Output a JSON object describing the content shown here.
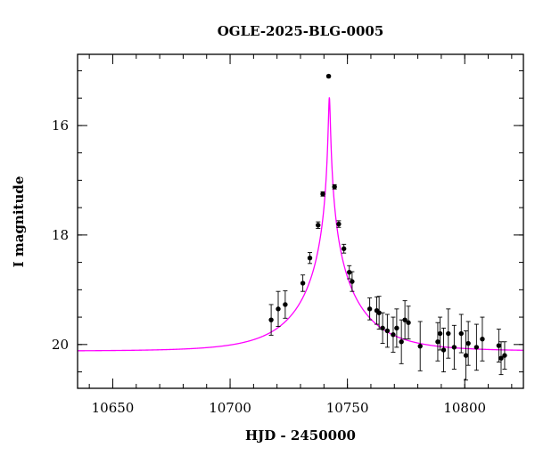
{
  "chart_data": {
    "type": "scatter",
    "title": "OGLE-2025-BLG-0005",
    "xlabel": "HJD - 2450000",
    "ylabel": "I magnitude",
    "xlim": [
      10635,
      10825
    ],
    "ylim": [
      20.8,
      14.7
    ],
    "y_inverted": true,
    "x_major_ticks": [
      10650,
      10700,
      10750,
      10800
    ],
    "x_minor_step": 10,
    "y_major_ticks": [
      16,
      18,
      20
    ],
    "y_minor_step": 0.5,
    "grid": false,
    "legend": "none",
    "colors": {
      "model": "#ff00ff",
      "points": "#000000",
      "axes": "#000000"
    },
    "model": {
      "type": "single-lens point-source",
      "t0": 10742.3,
      "u0": 0.014,
      "tE": 26,
      "baseline_mag": 20.12,
      "line_color": "#ff00ff"
    },
    "points": [
      {
        "x": 10717.5,
        "y": 19.55,
        "err": 0.28
      },
      {
        "x": 10720.5,
        "y": 19.35,
        "err": 0.32
      },
      {
        "x": 10723.5,
        "y": 19.27,
        "err": 0.25
      },
      {
        "x": 10731.0,
        "y": 18.88,
        "err": 0.15
      },
      {
        "x": 10734.0,
        "y": 18.42,
        "err": 0.1
      },
      {
        "x": 10737.5,
        "y": 17.82,
        "err": 0.06
      },
      {
        "x": 10739.5,
        "y": 17.25,
        "err": 0.04
      },
      {
        "x": 10742.0,
        "y": 15.1,
        "err": 0.02
      },
      {
        "x": 10744.5,
        "y": 17.12,
        "err": 0.04
      },
      {
        "x": 10746.3,
        "y": 17.8,
        "err": 0.06
      },
      {
        "x": 10748.5,
        "y": 18.25,
        "err": 0.08
      },
      {
        "x": 10750.8,
        "y": 18.68,
        "err": 0.12
      },
      {
        "x": 10752.0,
        "y": 18.85,
        "err": 0.18
      },
      {
        "x": 10759.5,
        "y": 19.35,
        "err": 0.2
      },
      {
        "x": 10762.5,
        "y": 19.38,
        "err": 0.25
      },
      {
        "x": 10763.5,
        "y": 19.42,
        "err": 0.3
      },
      {
        "x": 10765.0,
        "y": 19.7,
        "err": 0.28
      },
      {
        "x": 10767.0,
        "y": 19.75,
        "err": 0.3
      },
      {
        "x": 10769.5,
        "y": 19.82,
        "err": 0.32
      },
      {
        "x": 10771.0,
        "y": 19.7,
        "err": 0.35
      },
      {
        "x": 10773.0,
        "y": 19.95,
        "err": 0.4
      },
      {
        "x": 10774.5,
        "y": 19.55,
        "err": 0.35
      },
      {
        "x": 10776.0,
        "y": 19.6,
        "err": 0.3
      },
      {
        "x": 10781.0,
        "y": 20.03,
        "err": 0.45
      },
      {
        "x": 10788.5,
        "y": 19.95,
        "err": 0.35
      },
      {
        "x": 10789.5,
        "y": 19.8,
        "err": 0.3
      },
      {
        "x": 10791.0,
        "y": 20.1,
        "err": 0.4
      },
      {
        "x": 10793.0,
        "y": 19.8,
        "err": 0.45
      },
      {
        "x": 10795.5,
        "y": 20.05,
        "err": 0.4
      },
      {
        "x": 10798.5,
        "y": 19.8,
        "err": 0.35
      },
      {
        "x": 10800.5,
        "y": 20.2,
        "err": 0.45
      },
      {
        "x": 10801.5,
        "y": 19.98,
        "err": 0.4
      },
      {
        "x": 10805.0,
        "y": 20.05,
        "err": 0.42
      },
      {
        "x": 10807.5,
        "y": 19.9,
        "err": 0.4
      },
      {
        "x": 10814.5,
        "y": 20.02,
        "err": 0.3
      },
      {
        "x": 10815.5,
        "y": 20.25,
        "err": 0.3
      },
      {
        "x": 10817.0,
        "y": 20.2,
        "err": 0.25
      }
    ]
  }
}
